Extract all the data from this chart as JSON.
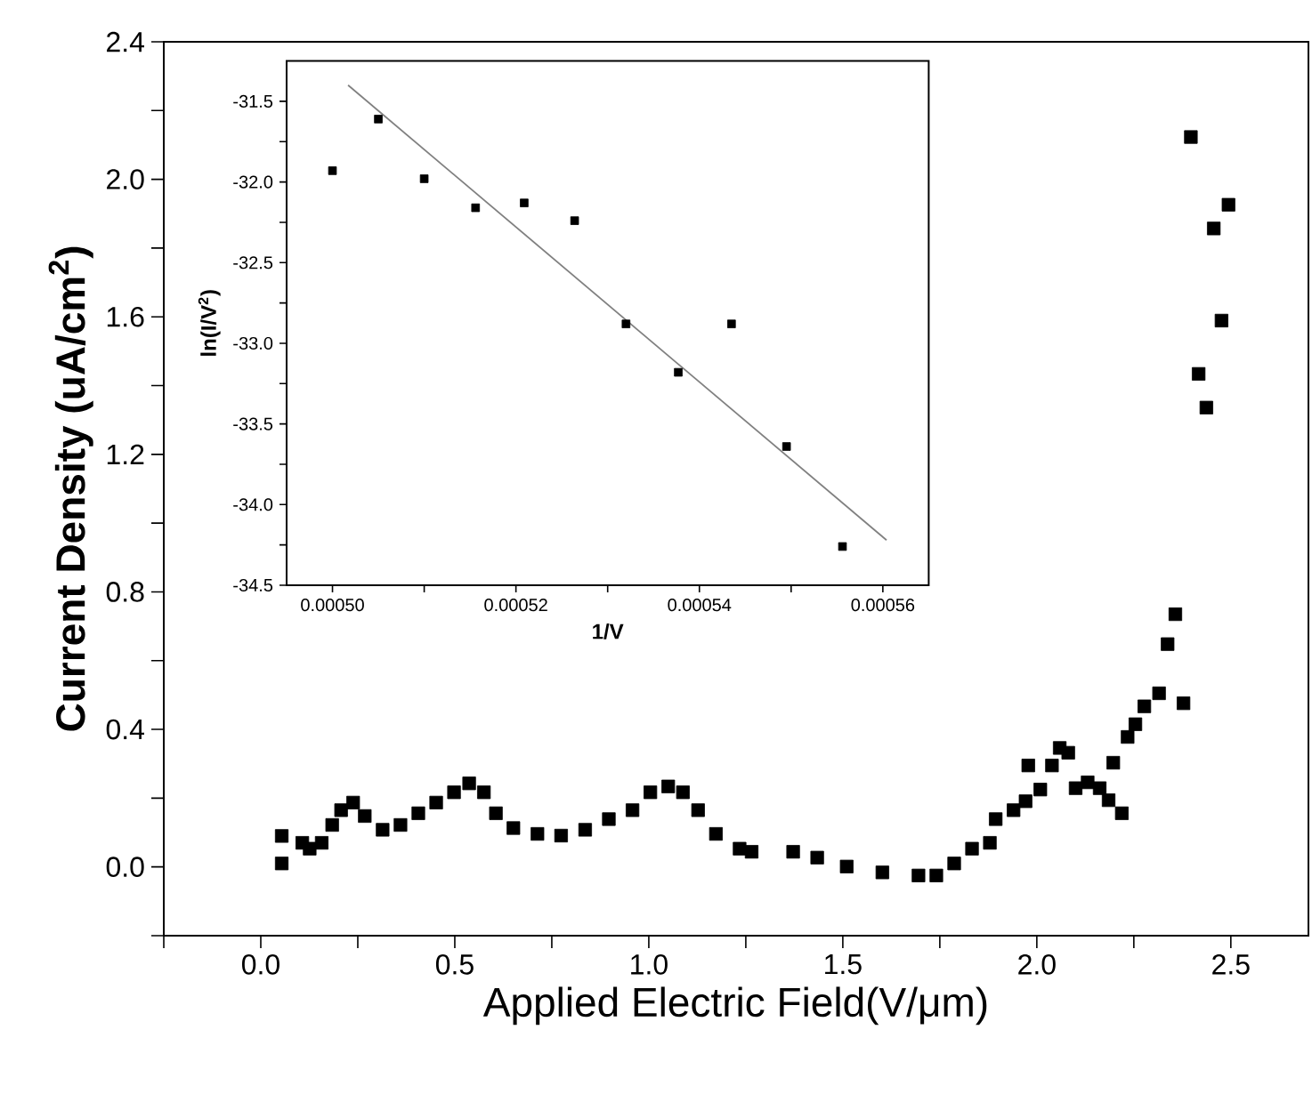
{
  "chart_data": [
    {
      "type": "scatter",
      "xlabel": "Applied Electric Field(V/μm)",
      "ylabel": "Current Density (uA/cm$^{2}$)",
      "marker": "square",
      "xlim": [
        -0.25,
        2.7
      ],
      "ylim": [
        -0.2,
        2.4
      ],
      "xticks": [
        {
          "value": -0.25,
          "label": null
        },
        {
          "value": 0,
          "label": "0.0"
        },
        {
          "value": 0.25,
          "label": null
        },
        0.5,
        {
          "value": 0.75,
          "label": null
        },
        {
          "value": 1,
          "label": "1.0"
        },
        {
          "value": 1.25,
          "label": null
        },
        1.5,
        {
          "value": 1.75,
          "label": null
        },
        {
          "value": 2,
          "label": "2.0"
        },
        {
          "value": 2.25,
          "label": null
        },
        2.5
      ],
      "yticks": [
        {
          "value": -0.2,
          "label": null
        },
        {
          "value": 0,
          "label": "0.0"
        },
        {
          "value": 0.2,
          "label": null
        },
        0.4,
        {
          "value": 0.6,
          "label": null
        },
        0.8,
        {
          "value": 1.0,
          "label": null
        },
        1.2,
        {
          "value": 1.4,
          "label": null
        },
        1.6,
        {
          "value": 1.8,
          "label": null
        },
        {
          "value": 2,
          "label": "2.0"
        },
        {
          "value": 2.2,
          "label": null
        },
        2.4
      ],
      "series": [
        {
          "color": "#000000",
          "x": [
            0.054,
            0.054,
            0.107,
            0.126,
            0.157,
            0.184,
            0.207,
            0.238,
            0.268,
            0.314,
            0.36,
            0.406,
            0.452,
            0.498,
            0.537,
            0.575,
            0.606,
            0.651,
            0.713,
            0.774,
            0.836,
            0.897,
            0.958,
            1.004,
            1.05,
            1.088,
            1.127,
            1.173,
            1.234,
            1.265,
            1.372,
            1.434,
            1.51,
            1.602,
            1.695,
            1.741,
            1.787,
            1.833,
            1.879,
            1.894,
            1.94,
            1.971,
            1.978,
            2.009,
            2.039,
            2.059,
            2.081,
            2.1,
            2.131,
            2.162,
            2.185,
            2.197,
            2.219,
            2.234,
            2.254,
            2.277,
            2.315,
            2.337,
            2.357,
            2.378,
            2.397,
            2.417,
            2.437,
            2.456,
            2.476,
            2.494
          ],
          "values": [
            0.01,
            0.09,
            0.07,
            0.053,
            0.07,
            0.122,
            0.165,
            0.187,
            0.148,
            0.108,
            0.122,
            0.156,
            0.187,
            0.217,
            0.243,
            0.217,
            0.156,
            0.113,
            0.096,
            0.091,
            0.108,
            0.139,
            0.165,
            0.217,
            0.234,
            0.217,
            0.165,
            0.096,
            0.053,
            0.044,
            0.044,
            0.027,
            0.001,
            -0.016,
            -0.025,
            -0.025,
            0.01,
            0.053,
            0.07,
            0.139,
            0.165,
            0.191,
            0.295,
            0.225,
            0.295,
            0.346,
            0.332,
            0.229,
            0.246,
            0.229,
            0.194,
            0.303,
            0.156,
            0.378,
            0.415,
            0.467,
            0.505,
            0.648,
            0.735,
            0.476,
            2.123,
            1.434,
            1.336,
            1.857,
            1.589,
            1.926
          ]
        }
      ]
    },
    {
      "type": "scatter",
      "xlabel": "1/V",
      "ylabel": "ln(I/V$^{2}$)",
      "marker": "square",
      "xlim": [
        0.000495,
        0.000565
      ],
      "ylim": [
        -34.5,
        -31.25
      ],
      "xticks": [
        {
          "value": 0.0005,
          "label": "0.00050"
        },
        {
          "value": 0.00051,
          "label": null
        },
        {
          "value": 0.00052,
          "label": "0.00052"
        },
        {
          "value": 0.00053,
          "label": null
        },
        {
          "value": 0.00054,
          "label": "0.00054"
        },
        {
          "value": 0.00055,
          "label": null
        },
        {
          "value": 0.00056,
          "label": "0.00056"
        }
      ],
      "yticks": [
        -34.5,
        {
          "value": -34.25,
          "label": null
        },
        {
          "value": -34,
          "label": "-34.0"
        },
        {
          "value": -33.75,
          "label": null
        },
        -33.5,
        {
          "value": -33.25,
          "label": null
        },
        {
          "value": -33,
          "label": "-33.0"
        },
        {
          "value": -32.75,
          "label": null
        },
        -32.5,
        {
          "value": -32.25,
          "label": null
        },
        {
          "value": -32,
          "label": "-32.0"
        },
        {
          "value": -31.75,
          "label": null
        },
        -31.5
      ],
      "series": [
        {
          "color": "#000000",
          "x": [
            0.0005,
            0.000505,
            0.00051,
            0.0005156,
            0.0005209,
            0.0005264,
            0.000532,
            0.0005377,
            0.0005435,
            0.0005495,
            0.0005556
          ],
          "values": [
            -31.93,
            -31.61,
            -31.98,
            -32.16,
            -32.13,
            -32.24,
            -32.88,
            -33.18,
            -32.88,
            -33.64,
            -34.26
          ]
        },
        {
          "type": "line",
          "marker": "none",
          "color": "#808080",
          "x": [
            0.0005017,
            0.0005604
          ],
          "values": [
            -31.4,
            -34.22
          ]
        }
      ]
    }
  ]
}
